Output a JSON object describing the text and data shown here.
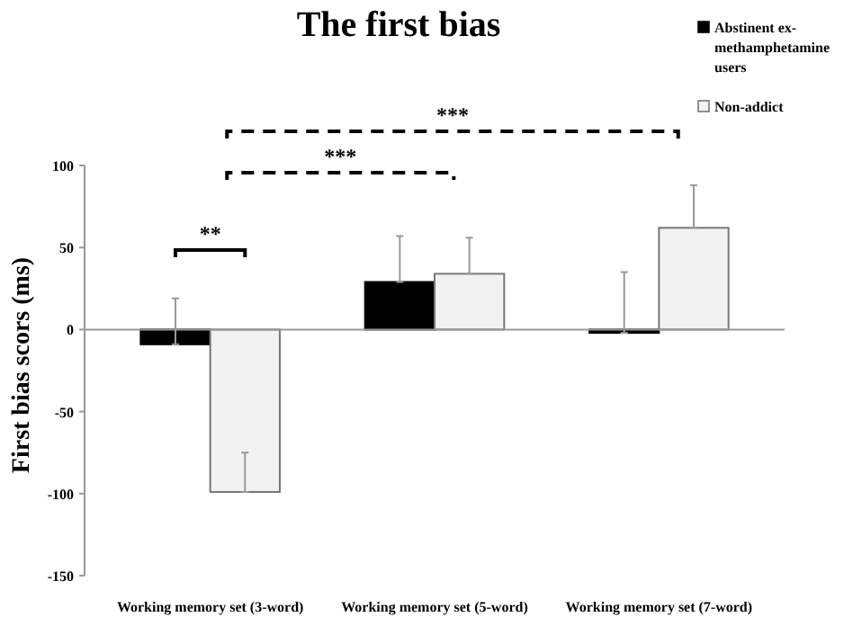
{
  "chart_data": {
    "type": "bar",
    "title": "The first bias",
    "ylabel": "First bias scors (ms)",
    "categories": [
      "Working memory set (3-word)",
      "Working memory set (5-word)",
      "Working memory set (7-word)"
    ],
    "series": [
      {
        "name": "Abstinent ex-methamphetamine users",
        "color": "#000000",
        "values": [
          -9,
          29,
          -2
        ],
        "errors": [
          [
            -9,
            19
          ],
          [
            29,
            57
          ],
          [
            -2,
            35
          ]
        ]
      },
      {
        "name": "Non-addict",
        "color": "#f2f2f2",
        "values": [
          -99,
          34,
          62
        ],
        "errors": [
          [
            -99,
            -75
          ],
          [
            34,
            56
          ],
          [
            62,
            88
          ]
        ]
      }
    ],
    "ylim": [
      -150,
      100
    ],
    "yticks": [
      -150,
      -100,
      -50,
      0,
      50,
      100
    ],
    "legend": "top right",
    "annotations": [
      "**",
      "***",
      "***"
    ]
  }
}
